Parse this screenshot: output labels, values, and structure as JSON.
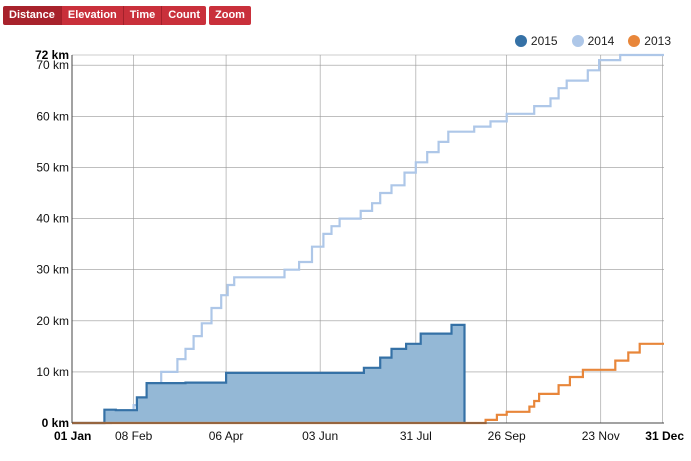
{
  "toolbar": {
    "modes": [
      {
        "label": "Distance",
        "active": true
      },
      {
        "label": "Elevation",
        "active": false
      },
      {
        "label": "Time",
        "active": false
      },
      {
        "label": "Count",
        "active": false
      }
    ],
    "zoom_label": "Zoom"
  },
  "colors": {
    "2015_line": "#3571a6",
    "2015_fill": "#94b8d6",
    "2014": "#aec7e8",
    "2013": "#e8863a",
    "grid": "#999999"
  },
  "chart_data": {
    "type": "line",
    "title": "",
    "xlabel": "",
    "ylabel": "",
    "x_unit": "day of year",
    "xlim": [
      0,
      365
    ],
    "ylim": [
      0,
      72
    ],
    "y_unit": "km",
    "y_ticks": [
      {
        "value": 0,
        "label": "0 km",
        "bold": true
      },
      {
        "value": 10,
        "label": "10 km",
        "bold": false
      },
      {
        "value": 20,
        "label": "20 km",
        "bold": false
      },
      {
        "value": 30,
        "label": "30 km",
        "bold": false
      },
      {
        "value": 40,
        "label": "40 km",
        "bold": false
      },
      {
        "value": 50,
        "label": "50 km",
        "bold": false
      },
      {
        "value": 60,
        "label": "60 km",
        "bold": false
      },
      {
        "value": 70,
        "label": "70 km",
        "bold": false
      },
      {
        "value": 72,
        "label": "72 km",
        "bold": true
      }
    ],
    "x_ticks": [
      {
        "value": 0,
        "label": "01 Jan",
        "bold": true
      },
      {
        "value": 38,
        "label": "08 Feb",
        "bold": false
      },
      {
        "value": 95,
        "label": "06 Apr",
        "bold": false
      },
      {
        "value": 153,
        "label": "03 Jun",
        "bold": false
      },
      {
        "value": 212,
        "label": "31 Jul",
        "bold": false
      },
      {
        "value": 268,
        "label": "26 Sep",
        "bold": false
      },
      {
        "value": 326,
        "label": "23 Nov",
        "bold": false
      },
      {
        "value": 364,
        "label": "31 Dec",
        "bold": true
      }
    ],
    "legend": "top-right",
    "series": [
      {
        "name": "2015",
        "key": "2015",
        "fill": true,
        "points": [
          [
            0,
            0
          ],
          [
            20,
            0
          ],
          [
            20,
            2.6
          ],
          [
            27,
            2.6
          ],
          [
            27,
            2.5
          ],
          [
            40,
            2.5
          ],
          [
            40,
            5
          ],
          [
            46,
            5
          ],
          [
            46,
            7.8
          ],
          [
            70,
            7.8
          ],
          [
            70,
            7.9
          ],
          [
            95,
            7.9
          ],
          [
            95,
            9.8
          ],
          [
            180,
            9.8
          ],
          [
            180,
            10.8
          ],
          [
            190,
            10.8
          ],
          [
            190,
            12.8
          ],
          [
            197,
            12.8
          ],
          [
            197,
            14.5
          ],
          [
            206,
            14.5
          ],
          [
            206,
            15.5
          ],
          [
            215,
            15.5
          ],
          [
            215,
            17.5
          ],
          [
            234,
            17.5
          ],
          [
            234,
            19.2
          ],
          [
            242,
            19.2
          ],
          [
            242,
            0
          ]
        ]
      },
      {
        "name": "2014",
        "key": "2014",
        "fill": false,
        "points": [
          [
            0,
            0
          ],
          [
            24,
            0
          ],
          [
            24,
            1.0
          ],
          [
            30,
            1.0
          ],
          [
            30,
            2.5
          ],
          [
            38,
            2.5
          ],
          [
            38,
            3.5
          ],
          [
            42,
            3.5
          ],
          [
            42,
            4.5
          ],
          [
            46,
            4.5
          ],
          [
            46,
            6.5
          ],
          [
            50,
            6.5
          ],
          [
            50,
            7.8
          ],
          [
            55,
            7.8
          ],
          [
            55,
            10
          ],
          [
            65,
            10
          ],
          [
            65,
            12.5
          ],
          [
            70,
            12.5
          ],
          [
            70,
            14.5
          ],
          [
            75,
            14.5
          ],
          [
            75,
            17
          ],
          [
            80,
            17
          ],
          [
            80,
            19.5
          ],
          [
            86,
            19.5
          ],
          [
            86,
            22.5
          ],
          [
            92,
            22.5
          ],
          [
            92,
            25
          ],
          [
            96,
            25
          ],
          [
            96,
            27
          ],
          [
            100,
            27
          ],
          [
            100,
            28.5
          ],
          [
            131,
            28.5
          ],
          [
            131,
            30
          ],
          [
            140,
            30
          ],
          [
            140,
            31.5
          ],
          [
            148,
            31.5
          ],
          [
            148,
            34.5
          ],
          [
            155,
            34.5
          ],
          [
            155,
            37
          ],
          [
            160,
            37
          ],
          [
            160,
            38.5
          ],
          [
            165,
            38.5
          ],
          [
            165,
            40
          ],
          [
            178,
            40
          ],
          [
            178,
            41.5
          ],
          [
            185,
            41.5
          ],
          [
            185,
            43
          ],
          [
            190,
            43
          ],
          [
            190,
            45
          ],
          [
            197,
            45
          ],
          [
            197,
            46.5
          ],
          [
            205,
            46.5
          ],
          [
            205,
            49
          ],
          [
            212,
            49
          ],
          [
            212,
            51
          ],
          [
            219,
            51
          ],
          [
            219,
            53
          ],
          [
            226,
            53
          ],
          [
            226,
            55
          ],
          [
            232,
            55
          ],
          [
            232,
            57
          ],
          [
            248,
            57
          ],
          [
            248,
            58
          ],
          [
            258,
            58
          ],
          [
            258,
            59
          ],
          [
            268,
            59
          ],
          [
            268,
            60.5
          ],
          [
            285,
            60.5
          ],
          [
            285,
            62
          ],
          [
            295,
            62
          ],
          [
            295,
            63.5
          ],
          [
            300,
            63.5
          ],
          [
            300,
            65.5
          ],
          [
            305,
            65.5
          ],
          [
            305,
            67
          ],
          [
            318,
            67
          ],
          [
            318,
            69
          ],
          [
            325,
            69
          ],
          [
            325,
            71
          ],
          [
            338,
            71
          ],
          [
            338,
            72
          ],
          [
            365,
            72
          ]
        ]
      },
      {
        "name": "2013",
        "key": "2013",
        "fill": false,
        "points": [
          [
            0,
            0
          ],
          [
            255,
            0
          ],
          [
            255,
            0.6
          ],
          [
            262,
            0.6
          ],
          [
            262,
            1.6
          ],
          [
            268,
            1.6
          ],
          [
            268,
            2.2
          ],
          [
            282,
            2.2
          ],
          [
            282,
            3.2
          ],
          [
            285,
            3.2
          ],
          [
            285,
            4.3
          ],
          [
            288,
            4.3
          ],
          [
            288,
            5.7
          ],
          [
            300,
            5.7
          ],
          [
            300,
            7.4
          ],
          [
            307,
            7.4
          ],
          [
            307,
            9.0
          ],
          [
            315,
            9.0
          ],
          [
            315,
            10.4
          ],
          [
            335,
            10.4
          ],
          [
            335,
            12.2
          ],
          [
            343,
            12.2
          ],
          [
            343,
            13.8
          ],
          [
            350,
            13.8
          ],
          [
            350,
            15.5
          ],
          [
            365,
            15.5
          ]
        ]
      }
    ]
  }
}
